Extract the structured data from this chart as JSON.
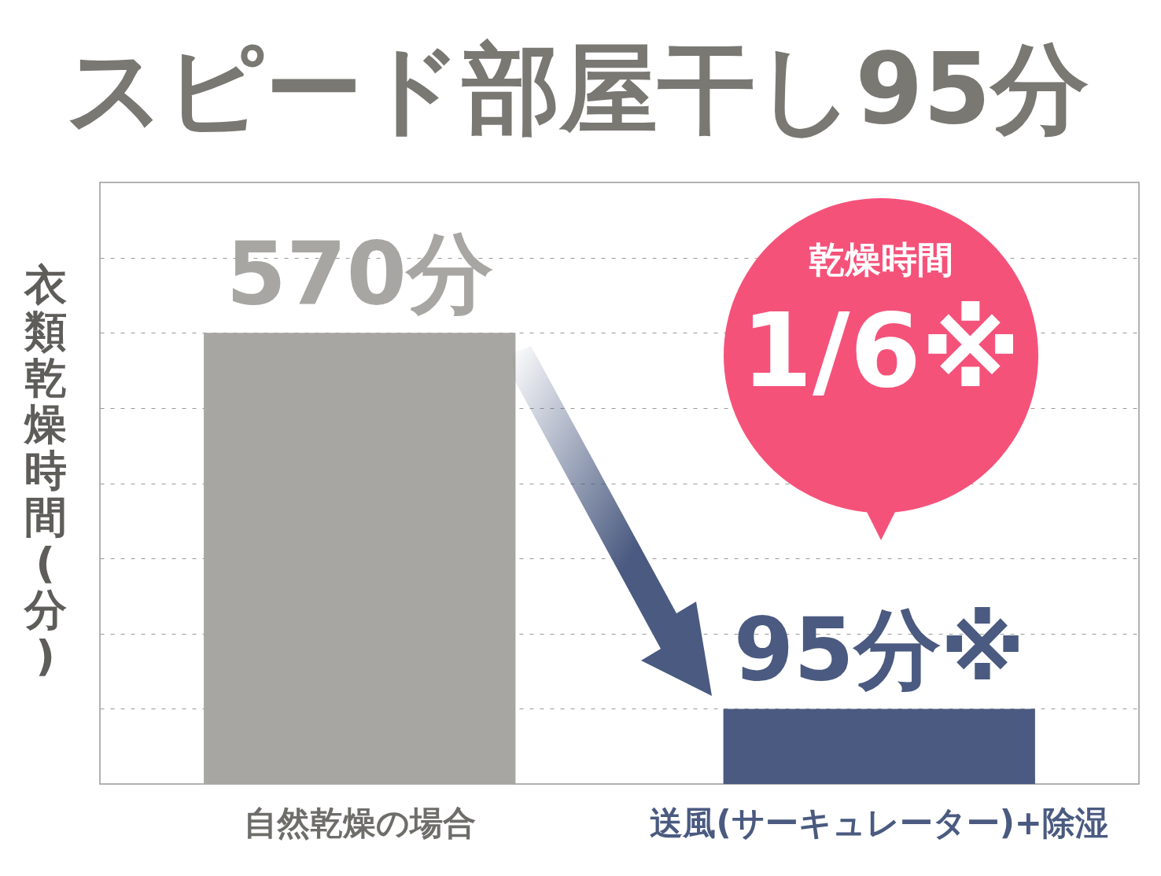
{
  "chart_data": {
    "type": "bar",
    "title": "スピード部屋干し95分",
    "ylabel": "衣類乾燥時間(分)",
    "categories": [
      "自然乾燥の場合",
      "送風(サーキュレーター)+除湿"
    ],
    "values": [
      570,
      95
    ],
    "value_labels": [
      "570分",
      "95分※"
    ],
    "colors": [
      "#a8a6a2",
      "#4a5a80"
    ],
    "ylim": [
      0,
      760
    ],
    "yticks": [
      {
        "value": 95,
        "label": null
      },
      {
        "value": 190,
        "label": null
      },
      {
        "value": 285,
        "label": null
      },
      {
        "value": 380,
        "label": null
      },
      {
        "value": 475,
        "label": null
      },
      {
        "value": 570,
        "label": null
      },
      {
        "value": 665,
        "label": null
      }
    ],
    "grid": "y",
    "tick_labels": "x",
    "annotations": [
      "乾燥時間",
      "1/6※"
    ]
  }
}
